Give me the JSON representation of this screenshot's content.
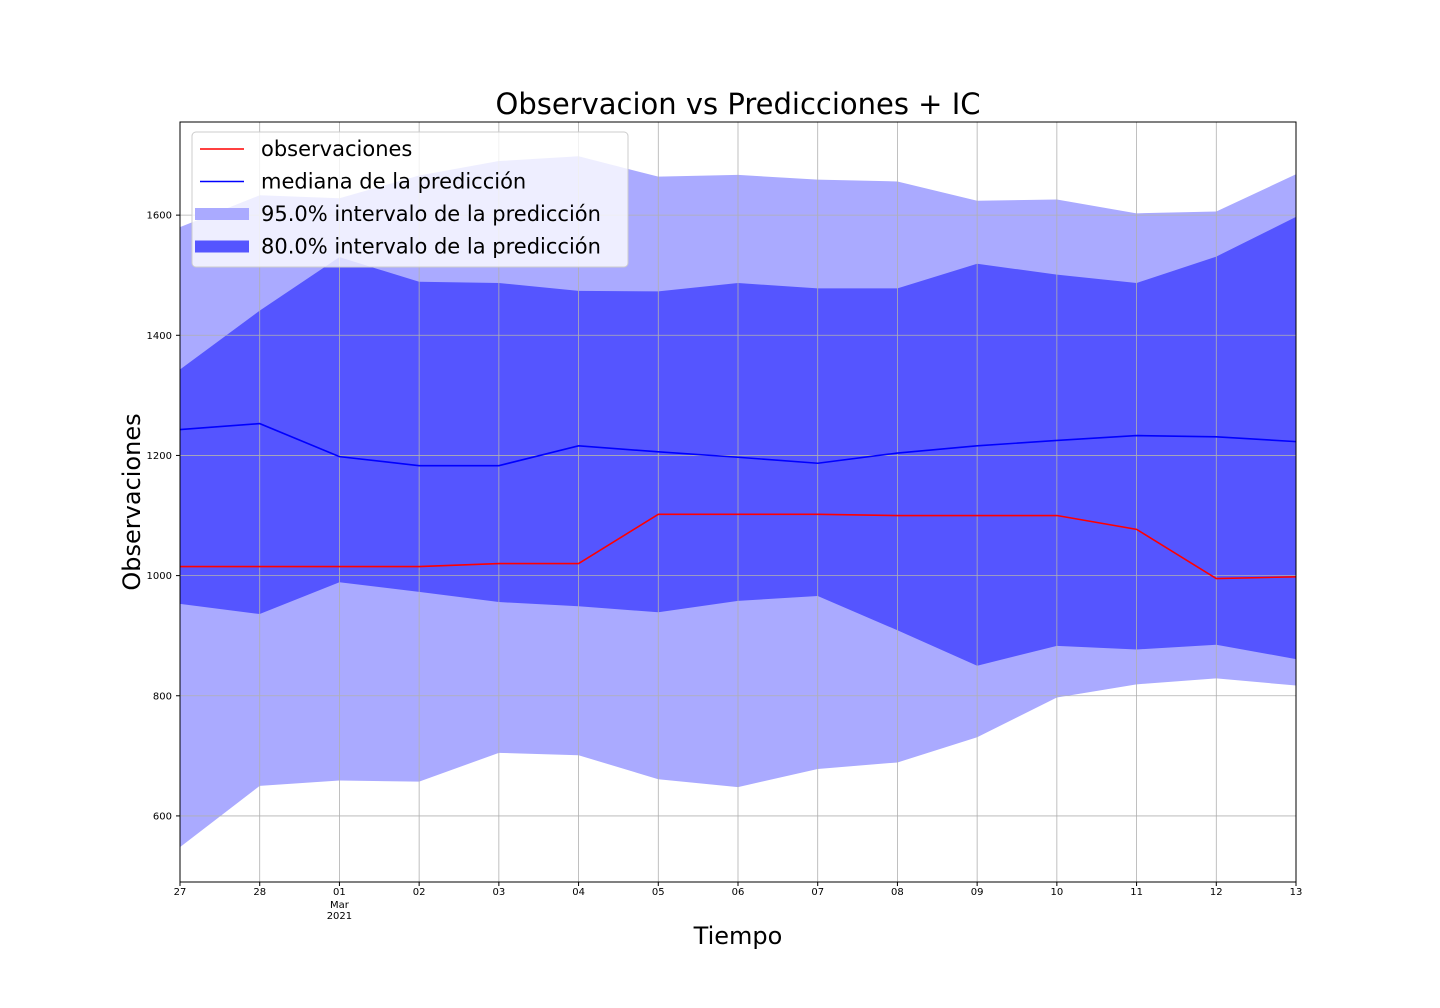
{
  "chart_data": {
    "type": "area",
    "title": "Observacion vs Predicciones + IC",
    "xlabel": "Tiempo",
    "ylabel": "Observaciones",
    "x_ticks": [
      "27",
      "28",
      "01",
      "02",
      "03",
      "04",
      "05",
      "06",
      "07",
      "08",
      "09",
      "10",
      "11",
      "12",
      "13"
    ],
    "x_tick_sublabel": {
      "index": 2,
      "lines": [
        "Mar",
        "2021"
      ]
    },
    "ylim": [
      490,
      1755
    ],
    "y_ticks": [
      600,
      800,
      1000,
      1200,
      1400,
      1600
    ],
    "grid": true,
    "legend_position": "upper left",
    "series": [
      {
        "name": "observaciones",
        "kind": "line",
        "color": "#ff0000",
        "values": [
          1015,
          1015,
          1015,
          1015,
          1020,
          1020,
          1102,
          1102,
          1102,
          1100,
          1100,
          1100,
          1077,
          995,
          998
        ]
      },
      {
        "name": "mediana de la predicción",
        "kind": "line",
        "color": "#0000ff",
        "values": [
          1243,
          1253,
          1198,
          1183,
          1183,
          1216,
          1206,
          1197,
          1187,
          1204,
          1216,
          1225,
          1233,
          1231,
          1223
        ]
      },
      {
        "name": "95.0% intervalo de la predicción",
        "kind": "band",
        "color": "#aaaaff",
        "lower": [
          548,
          650,
          659,
          657,
          705,
          701,
          661,
          648,
          678,
          689,
          731,
          797,
          819,
          829,
          817
        ],
        "upper": [
          1580,
          1633,
          1628,
          1666,
          1690,
          1698,
          1664,
          1667,
          1659,
          1656,
          1624,
          1626,
          1603,
          1606,
          1668
        ]
      },
      {
        "name": "80.0% intervalo de la predicción",
        "kind": "band",
        "color": "#5555ff",
        "lower": [
          953,
          936,
          989,
          973,
          956,
          949,
          939,
          958,
          966,
          909,
          850,
          883,
          877,
          885,
          861
        ],
        "upper": [
          1343,
          1441,
          1530,
          1489,
          1487,
          1474,
          1473,
          1487,
          1478,
          1478,
          1519,
          1501,
          1487,
          1531,
          1597
        ]
      }
    ]
  }
}
